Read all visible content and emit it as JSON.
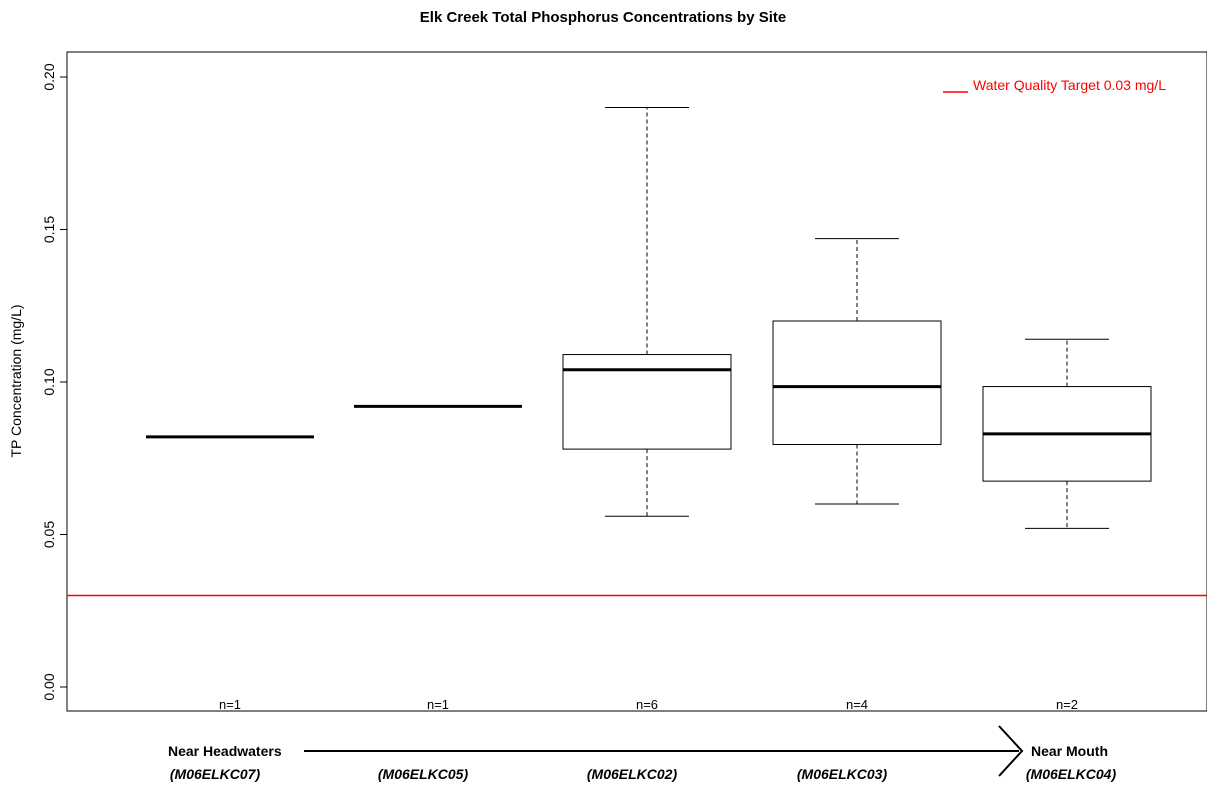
{
  "chart_data": {
    "type": "box",
    "title": "Elk Creek Total Phosphorus Concentrations by Site",
    "ylabel": "TP Concentration (mg/L)",
    "ylim": [
      0,
      0.2
    ],
    "yticks": [
      "0.00",
      "0.05",
      "0.10",
      "0.15",
      "0.20"
    ],
    "grid": false,
    "boxes": [
      {
        "site": "(M06ELKC07)",
        "n_label": "n=1",
        "min": 0.082,
        "q1": 0.082,
        "median": 0.082,
        "q3": 0.082,
        "max": 0.082
      },
      {
        "site": "(M06ELKC05)",
        "n_label": "n=1",
        "min": 0.092,
        "q1": 0.092,
        "median": 0.092,
        "q3": 0.092,
        "max": 0.092
      },
      {
        "site": "(M06ELKC02)",
        "n_label": "n=6",
        "min": 0.056,
        "q1": 0.078,
        "median": 0.104,
        "q3": 0.109,
        "max": 0.19
      },
      {
        "site": "(M06ELKC03)",
        "n_label": "n=4",
        "min": 0.06,
        "q1": 0.0795,
        "median": 0.0985,
        "q3": 0.12,
        "max": 0.147
      },
      {
        "site": "(M06ELKC04)",
        "n_label": "n=2",
        "min": 0.052,
        "q1": 0.0675,
        "median": 0.083,
        "q3": 0.0985,
        "max": 0.114
      }
    ],
    "reference_line": {
      "value": 0.03,
      "label": "Water Quality Target 0.03 mg/L",
      "color": "#ff0000"
    },
    "legend_position": "top-right",
    "flow_start_label": "Near Headwaters",
    "flow_end_label": "Near Mouth"
  }
}
